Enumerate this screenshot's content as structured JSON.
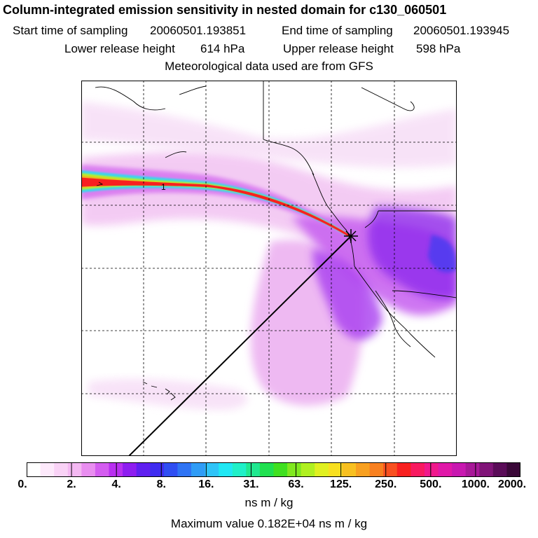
{
  "header": {
    "title": "Column-integrated emission sensitivity in nested domain for c130_060501",
    "start_label": "Start time of sampling",
    "start_value": "20060501.193851",
    "end_label": "End time of sampling",
    "end_value": "20060501.193945",
    "lower_label": "Lower release height",
    "lower_value": "614 hPa",
    "upper_label": "Upper release height",
    "upper_value": "598 hPa",
    "met_line": "Meteorological data used are from GFS"
  },
  "map": {
    "contour_label": "1",
    "release_marker": "release-point-star"
  },
  "colorbar": {
    "ticks": [
      "0.",
      "2.",
      "4.",
      "8.",
      "16.",
      "31.",
      "63.",
      "125.",
      "250.",
      "500.",
      "1000.",
      "2000."
    ],
    "colors": [
      "#ffffff",
      "#fde9fb",
      "#f9d2f6",
      "#f4b8f2",
      "#e98ef0",
      "#d45df0",
      "#b930f0",
      "#8e1ef0",
      "#6020f0",
      "#3f2cf0",
      "#2f4ef2",
      "#2f74f4",
      "#2f9cf6",
      "#2fc4f8",
      "#20e8f4",
      "#20f0c8",
      "#20e890",
      "#20e050",
      "#40e020",
      "#80e820",
      "#b0f020",
      "#e0f020",
      "#f8e020",
      "#f8c020",
      "#f8a020",
      "#f88020",
      "#f85020",
      "#f82020",
      "#f81a60",
      "#f0188c",
      "#e018a8",
      "#c818b0",
      "#a81898",
      "#801478",
      "#5a0c58",
      "#3a0838"
    ],
    "units": "ns m / kg",
    "max_value_text": "Maximum value  0.182E+04 ns m / kg"
  }
}
